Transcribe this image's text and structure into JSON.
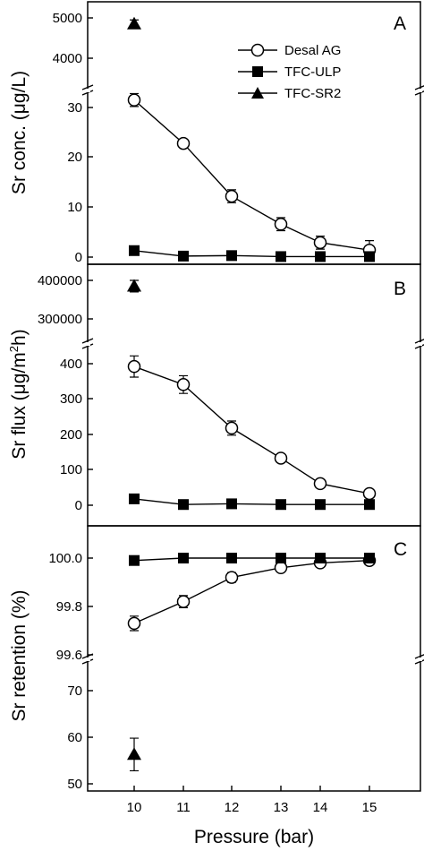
{
  "chart_data": [
    {
      "panel": "A",
      "type": "line",
      "ylabel": "Sr conc. (μg/L)",
      "xlabel": "",
      "x": [
        10,
        11,
        12,
        13,
        14,
        15
      ],
      "ylim_lower": [
        -1,
        34
      ],
      "ylim_upper": [
        3500,
        5300
      ],
      "yticks_lower": [
        0,
        10,
        20,
        30
      ],
      "yticks_upper": [
        4000,
        5000
      ],
      "series": [
        {
          "name": "Desal AG",
          "marker": "open-circle",
          "values": [
            31.5,
            22.8,
            12.2,
            6.6,
            2.9,
            1.4
          ],
          "errors": [
            1.3,
            0.8,
            1.3,
            1.3,
            1.3,
            1.9
          ]
        },
        {
          "name": "TFC-ULP",
          "marker": "filled-square",
          "values": [
            1.3,
            0.2,
            0.3,
            0.1,
            0.1,
            0.1
          ],
          "errors": [
            0,
            0,
            0,
            0,
            0,
            0
          ]
        },
        {
          "name": "TFC-SR2",
          "marker": "filled-triangle",
          "values": [
            4850,
            null,
            null,
            null,
            null,
            null
          ],
          "errors": [
            100,
            0,
            0,
            0,
            0,
            0
          ]
        }
      ],
      "legend": "top-right"
    },
    {
      "panel": "B",
      "type": "line",
      "ylabel": "Sr flux (μg/m2h)",
      "xlabel": "",
      "x": [
        10,
        11,
        12,
        13,
        14,
        15
      ],
      "ylim_lower": [
        -40,
        455
      ],
      "ylim_upper": [
        250000,
        430000
      ],
      "yticks_lower": [
        0,
        100,
        200,
        300,
        400
      ],
      "yticks_upper": [
        300000,
        400000
      ],
      "series": [
        {
          "name": "Desal AG",
          "marker": "open-circle",
          "values": [
            392,
            341,
            218,
            133,
            61,
            33
          ],
          "errors": [
            30,
            25,
            20,
            10,
            5,
            8
          ]
        },
        {
          "name": "TFC-ULP",
          "marker": "filled-square",
          "values": [
            18,
            2,
            4,
            2,
            2,
            2
          ],
          "errors": [
            0,
            0,
            0,
            0,
            0,
            0
          ]
        },
        {
          "name": "TFC-SR2",
          "marker": "filled-triangle",
          "values": [
            385000,
            null,
            null,
            null,
            null,
            null
          ],
          "errors": [
            15000,
            0,
            0,
            0,
            0,
            0
          ]
        }
      ]
    },
    {
      "panel": "C",
      "type": "line",
      "ylabel": "Sr retention (%)",
      "xlabel": "Pressure (bar)",
      "x": [
        10,
        11,
        12,
        13,
        14,
        15
      ],
      "xticks": [
        "10",
        "11",
        "12",
        "13",
        "14",
        "15"
      ],
      "ylim_upper": [
        99.6,
        100.1
      ],
      "ylim_lower": [
        46,
        78
      ],
      "yticks_upper": [
        "99.6",
        "99.8",
        "100.0"
      ],
      "yticks_lower": [
        "50",
        "60",
        "70"
      ],
      "series": [
        {
          "name": "Desal AG",
          "marker": "open-circle",
          "values": [
            99.73,
            99.82,
            99.92,
            99.96,
            99.98,
            99.99
          ],
          "errors": [
            0.03,
            0.025,
            0.02,
            0.01,
            0.01,
            0.01
          ]
        },
        {
          "name": "TFC-ULP",
          "marker": "filled-square",
          "values": [
            99.99,
            100.0,
            100.0,
            100.0,
            100.0,
            100.0
          ],
          "errors": [
            0,
            0,
            0,
            0,
            0,
            0
          ]
        },
        {
          "name": "TFC-SR2",
          "marker": "filled-triangle",
          "values": [
            56.3,
            null,
            null,
            null,
            null,
            null
          ],
          "errors": [
            3.5,
            0,
            0,
            0,
            0,
            0
          ]
        }
      ]
    }
  ],
  "legend_labels": [
    "Desal AG",
    "TFC-ULP",
    "TFC-SR2"
  ],
  "panel_letters": [
    "A",
    "B",
    "C"
  ],
  "ytick_labels": {
    "A_upper": [
      "5000",
      "4000"
    ],
    "A_lower": [
      "30",
      "20",
      "10",
      "0"
    ],
    "B_upper": [
      "400000",
      "300000"
    ],
    "B_lower": [
      "400",
      "300",
      "200",
      "100",
      "0"
    ],
    "C_upper": [
      "100.0",
      "99.8",
      "99.6"
    ],
    "C_lower": [
      "70",
      "60",
      "50"
    ]
  },
  "ylabels": {
    "A": "Sr conc. (μg/L)",
    "B_prefix": "Sr flux (μg/m",
    "B_sup": "2",
    "B_suffix": "h)",
    "C": "Sr retention (%)"
  },
  "xlabel": "Pressure (bar)"
}
